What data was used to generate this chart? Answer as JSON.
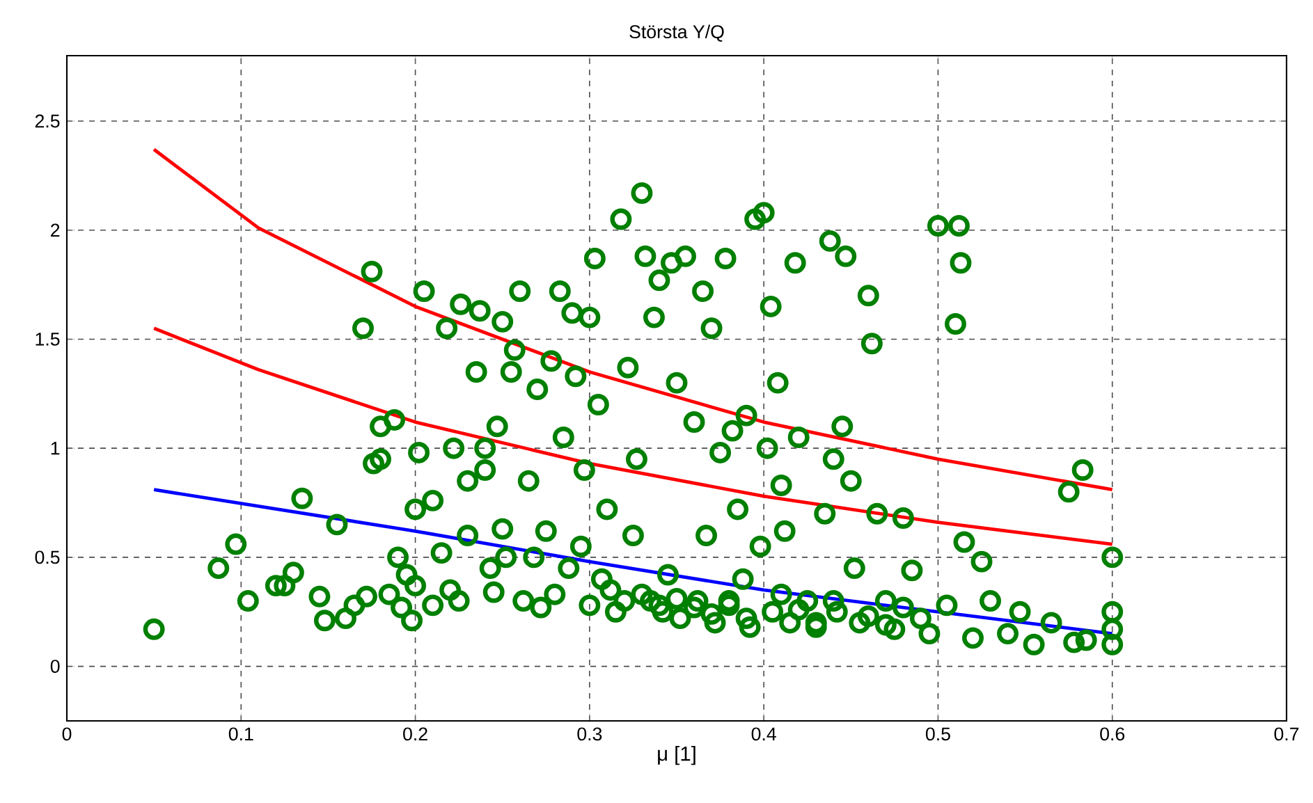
{
  "chart_data": {
    "type": "scatter",
    "title": "Största Y/Q",
    "xlabel": "μ [1]",
    "xlim": [
      0,
      0.7
    ],
    "ylim": [
      -0.25,
      2.8
    ],
    "xticks": [
      0,
      0.1,
      0.2,
      0.3,
      0.4,
      0.5,
      0.6,
      0.7
    ],
    "yticks": [
      0,
      0.5,
      1,
      1.5,
      2,
      2.5
    ],
    "grid": true,
    "series": [
      {
        "marker": "circle",
        "color": "#008000",
        "x": [
          0.05,
          0.087,
          0.097,
          0.104,
          0.12,
          0.125,
          0.13,
          0.135,
          0.145,
          0.148,
          0.155,
          0.16,
          0.165,
          0.17,
          0.172,
          0.175,
          0.176,
          0.18,
          0.18,
          0.185,
          0.188,
          0.19,
          0.192,
          0.195,
          0.198,
          0.2,
          0.2,
          0.202,
          0.205,
          0.21,
          0.21,
          0.215,
          0.218,
          0.22,
          0.222,
          0.225,
          0.226,
          0.23,
          0.23,
          0.235,
          0.237,
          0.24,
          0.24,
          0.243,
          0.245,
          0.247,
          0.25,
          0.25,
          0.252,
          0.255,
          0.257,
          0.26,
          0.262,
          0.265,
          0.268,
          0.27,
          0.272,
          0.275,
          0.278,
          0.28,
          0.283,
          0.285,
          0.288,
          0.29,
          0.292,
          0.295,
          0.297,
          0.3,
          0.3,
          0.303,
          0.305,
          0.307,
          0.31,
          0.312,
          0.315,
          0.318,
          0.32,
          0.322,
          0.325,
          0.327,
          0.33,
          0.332,
          0.335,
          0.337,
          0.34,
          0.342,
          0.345,
          0.347,
          0.35,
          0.352,
          0.355,
          0.36,
          0.362,
          0.365,
          0.367,
          0.37,
          0.372,
          0.375,
          0.378,
          0.38,
          0.382,
          0.385,
          0.388,
          0.39,
          0.392,
          0.395,
          0.398,
          0.4,
          0.402,
          0.404,
          0.405,
          0.408,
          0.41,
          0.412,
          0.415,
          0.418,
          0.42,
          0.425,
          0.43,
          0.435,
          0.438,
          0.44,
          0.442,
          0.445,
          0.447,
          0.45,
          0.452,
          0.455,
          0.46,
          0.462,
          0.465,
          0.47,
          0.475,
          0.48,
          0.485,
          0.49,
          0.495,
          0.5,
          0.505,
          0.51,
          0.512,
          0.513,
          0.515,
          0.52,
          0.525,
          0.53,
          0.54,
          0.547,
          0.555,
          0.565,
          0.575,
          0.578,
          0.583,
          0.585,
          0.6,
          0.6,
          0.6,
          0.6,
          0.33,
          0.34,
          0.35,
          0.36,
          0.37,
          0.38,
          0.39,
          0.41,
          0.42,
          0.43,
          0.44,
          0.46,
          0.47,
          0.48
        ],
        "values": [
          0.17,
          0.45,
          0.56,
          0.3,
          0.37,
          0.37,
          0.43,
          0.77,
          0.32,
          0.21,
          0.65,
          0.22,
          0.28,
          1.55,
          0.32,
          1.81,
          0.93,
          0.95,
          1.1,
          0.33,
          1.13,
          0.5,
          0.27,
          0.42,
          0.21,
          0.37,
          0.72,
          0.98,
          1.72,
          0.76,
          0.28,
          0.52,
          1.55,
          0.35,
          1.0,
          0.3,
          1.66,
          0.85,
          0.6,
          1.35,
          1.63,
          1.0,
          0.9,
          0.45,
          0.34,
          1.1,
          1.58,
          0.63,
          0.5,
          1.35,
          1.45,
          1.72,
          0.3,
          0.85,
          0.5,
          1.27,
          0.27,
          0.62,
          1.4,
          0.33,
          1.72,
          1.05,
          0.45,
          1.62,
          1.33,
          0.55,
          0.9,
          1.6,
          0.28,
          1.87,
          1.2,
          0.4,
          0.72,
          0.35,
          0.25,
          2.05,
          0.3,
          1.37,
          0.6,
          0.95,
          2.17,
          1.88,
          0.3,
          1.6,
          1.77,
          0.25,
          0.42,
          1.85,
          1.3,
          0.22,
          1.88,
          1.12,
          0.3,
          1.72,
          0.6,
          1.55,
          0.2,
          0.98,
          1.87,
          0.28,
          1.08,
          0.72,
          0.4,
          1.15,
          0.18,
          2.05,
          0.55,
          2.08,
          1.0,
          1.65,
          0.25,
          1.3,
          0.83,
          0.62,
          0.2,
          1.85,
          1.05,
          0.3,
          0.18,
          0.7,
          1.95,
          0.95,
          0.25,
          1.1,
          1.88,
          0.85,
          0.45,
          0.2,
          1.7,
          1.48,
          0.7,
          0.3,
          0.17,
          0.68,
          0.44,
          0.22,
          0.15,
          2.02,
          0.28,
          1.57,
          2.02,
          1.85,
          0.57,
          0.13,
          0.48,
          0.3,
          0.15,
          0.25,
          0.1,
          0.2,
          0.8,
          0.11,
          0.9,
          0.12,
          0.5,
          0.25,
          0.17,
          0.1,
          0.33,
          0.28,
          0.31,
          0.27,
          0.24,
          0.3,
          0.22,
          0.33,
          0.26,
          0.2,
          0.3,
          0.23,
          0.19,
          0.27
        ]
      },
      {
        "type": "line",
        "marker": "none",
        "color": "#ff0000",
        "x": [
          0.05,
          0.11,
          0.2,
          0.3,
          0.4,
          0.5,
          0.6
        ],
        "values": [
          2.37,
          2.01,
          1.65,
          1.35,
          1.12,
          0.95,
          0.81
        ]
      },
      {
        "type": "line",
        "marker": "none",
        "color": "#ff0000",
        "x": [
          0.05,
          0.11,
          0.2,
          0.3,
          0.4,
          0.5,
          0.6
        ],
        "values": [
          1.55,
          1.36,
          1.12,
          0.93,
          0.78,
          0.66,
          0.56
        ]
      },
      {
        "type": "line",
        "marker": "none",
        "color": "#0000ff",
        "x": [
          0.05,
          0.2,
          0.3,
          0.4,
          0.5,
          0.6
        ],
        "values": [
          0.81,
          0.62,
          0.48,
          0.35,
          0.25,
          0.15
        ]
      }
    ]
  }
}
